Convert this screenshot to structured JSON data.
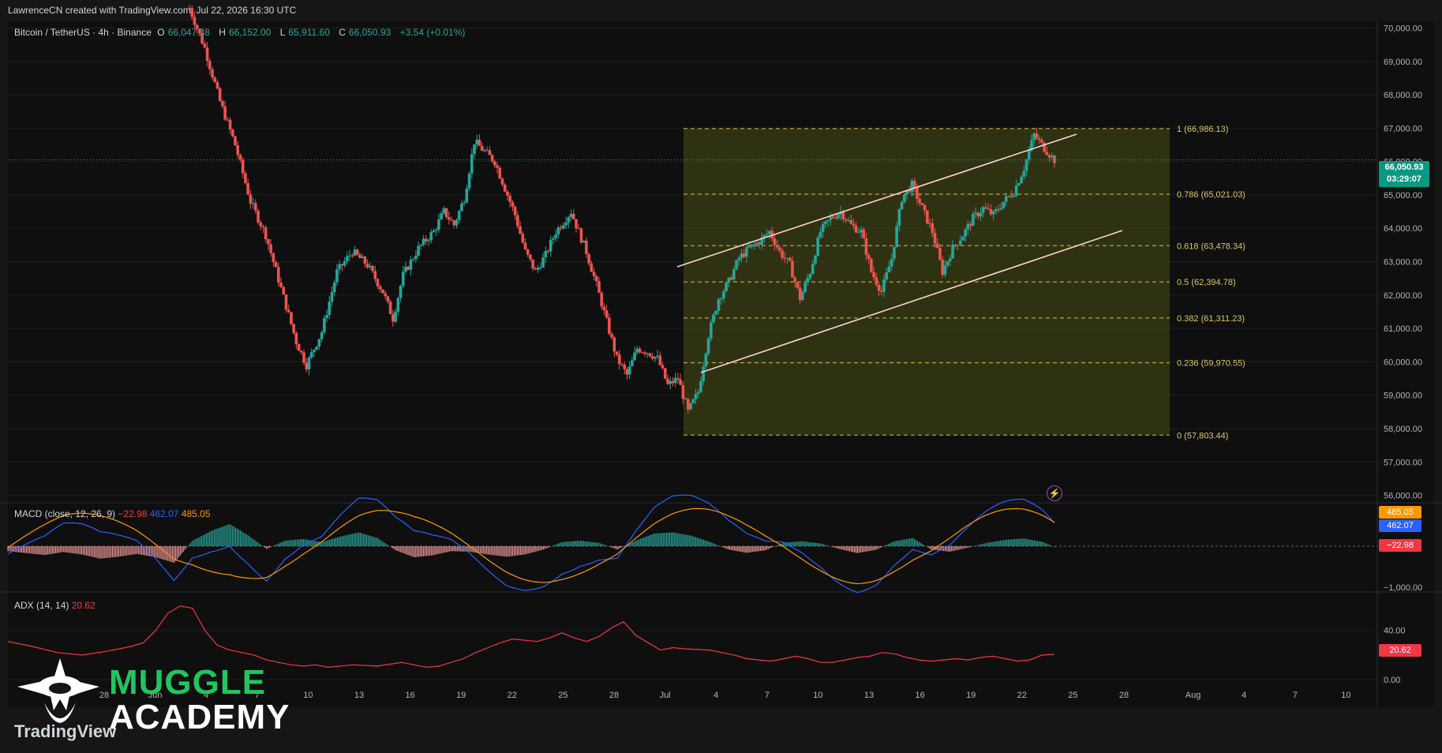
{
  "header": {
    "attribution": "LawrenceCN created with TradingView.com, Jul 22, 2026 16:30 UTC"
  },
  "legend": {
    "symbol": "Bitcoin / TetherUS · 4h · Binance",
    "o_label": "O",
    "o_value": "66,047.38",
    "h_label": "H",
    "h_value": "66,152.00",
    "l_label": "L",
    "l_value": "65,911.60",
    "c_label": "C",
    "c_value": "66,050.93",
    "change": "+3.54 (+0.01%)"
  },
  "price_tag": {
    "price": "66,050.93",
    "countdown": "03:29:07"
  },
  "macd": {
    "label": "MACD (close, 12, 26, 9)",
    "hist": "−22.98",
    "macd": "462.07",
    "signal": "485.05",
    "tag_signal": "485.05",
    "tag_macd": "462.07",
    "tag_hist": "−22.98",
    "axis_label": "−1,000.00"
  },
  "adx": {
    "label": "ADX (14, 14)",
    "value": "20.62",
    "tag": "20.62",
    "axis_labels": [
      "40.00",
      "0.00"
    ]
  },
  "colors": {
    "up": "#26a69a",
    "down": "#ef5350",
    "fib_zone": "#3b3f14",
    "fib_line": "#d4c24a",
    "fib_text": "#d9c86a",
    "channel": "#ffd3d3",
    "macd_line": "#2962ff",
    "signal_line": "#ff9800",
    "adx_line": "#f23645"
  },
  "logo": {
    "line1": "MUGGLE",
    "line2": "ACADEMY",
    "tv": "TradingView"
  },
  "chart_data": {
    "type": "candlestick",
    "title": "",
    "price_axis": [
      "70,000.00",
      "69,000.00",
      "68,000.00",
      "67,000.00",
      "66,000.00",
      "65,000.00",
      "64,000.00",
      "63,000.00",
      "62,000.00",
      "61,000.00",
      "60,000.00",
      "59,000.00",
      "58,000.00",
      "57,000.00",
      "56,000.00"
    ],
    "ylim": [
      55800,
      70200
    ],
    "x_ticks": [
      "28",
      "Jun",
      "4",
      "7",
      "10",
      "13",
      "16",
      "19",
      "22",
      "25",
      "28",
      "Jul",
      "4",
      "7",
      "10",
      "13",
      "16",
      "19",
      "22",
      "25",
      "28",
      "Aug",
      "4",
      "7",
      "10"
    ],
    "fib_levels": [
      {
        "ratio": "1",
        "price": 66986.13,
        "label": "1 (66,986.13)"
      },
      {
        "ratio": "0.786",
        "price": 65021.03,
        "label": "0.786 (65,021.03)"
      },
      {
        "ratio": "0.618",
        "price": 63478.34,
        "label": "0.618 (63,478.34)"
      },
      {
        "ratio": "0.5",
        "price": 62394.78,
        "label": "0.5 (62,394.78)"
      },
      {
        "ratio": "0.382",
        "price": 61311.23,
        "label": "0.382 (61,311.23)"
      },
      {
        "ratio": "0.236",
        "price": 59970.55,
        "label": "0.236 (59,970.55)"
      },
      {
        "ratio": "0",
        "price": 57803.44,
        "label": "0 (57,803.44)"
      }
    ],
    "price_path": [
      [
        0,
        70600
      ],
      [
        3,
        69400
      ],
      [
        6,
        67800
      ],
      [
        9,
        66500
      ],
      [
        12,
        64800
      ],
      [
        15,
        63800
      ],
      [
        18,
        62200
      ],
      [
        21,
        60600
      ],
      [
        23,
        59900
      ],
      [
        26,
        60900
      ],
      [
        29,
        62700
      ],
      [
        32,
        63300
      ],
      [
        35,
        62900
      ],
      [
        38,
        62100
      ],
      [
        40,
        61300
      ],
      [
        42,
        62600
      ],
      [
        45,
        63400
      ],
      [
        48,
        63900
      ],
      [
        50,
        64500
      ],
      [
        52,
        64100
      ],
      [
        54,
        64900
      ],
      [
        56,
        66600
      ],
      [
        58,
        66300
      ],
      [
        60,
        66000
      ],
      [
        62,
        65200
      ],
      [
        64,
        64400
      ],
      [
        66,
        63300
      ],
      [
        68,
        62700
      ],
      [
        70,
        63200
      ],
      [
        72,
        63900
      ],
      [
        74,
        64300
      ],
      [
        75,
        64500
      ],
      [
        76,
        64100
      ],
      [
        78,
        63300
      ],
      [
        80,
        62300
      ],
      [
        82,
        61200
      ],
      [
        84,
        60100
      ],
      [
        86,
        59600
      ],
      [
        88,
        60400
      ],
      [
        90,
        60300
      ],
      [
        92,
        60100
      ],
      [
        94,
        59300
      ],
      [
        96,
        59500
      ],
      [
        98,
        58500
      ],
      [
        100,
        59100
      ],
      [
        102,
        60800
      ],
      [
        104,
        61900
      ],
      [
        106,
        62400
      ],
      [
        108,
        63100
      ],
      [
        110,
        63400
      ],
      [
        112,
        63600
      ],
      [
        114,
        63900
      ],
      [
        116,
        63300
      ],
      [
        118,
        62900
      ],
      [
        120,
        61900
      ],
      [
        122,
        62700
      ],
      [
        124,
        63900
      ],
      [
        126,
        64300
      ],
      [
        128,
        64500
      ],
      [
        130,
        64100
      ],
      [
        132,
        63900
      ],
      [
        134,
        62700
      ],
      [
        136,
        62100
      ],
      [
        138,
        63100
      ],
      [
        140,
        64900
      ],
      [
        142,
        65300
      ],
      [
        144,
        64600
      ],
      [
        146,
        63900
      ],
      [
        148,
        62700
      ],
      [
        150,
        63400
      ],
      [
        152,
        63800
      ],
      [
        154,
        64300
      ],
      [
        156,
        64600
      ],
      [
        158,
        64400
      ],
      [
        160,
        64800
      ],
      [
        162,
        65100
      ],
      [
        164,
        65800
      ],
      [
        166,
        66800
      ],
      [
        168,
        66400
      ],
      [
        170,
        66050
      ]
    ],
    "adx_series": [
      [
        0,
        31
      ],
      [
        4,
        27
      ],
      [
        8,
        22
      ],
      [
        12,
        20
      ],
      [
        16,
        23
      ],
      [
        18,
        25
      ],
      [
        20,
        27
      ],
      [
        22,
        30
      ],
      [
        24,
        40
      ],
      [
        26,
        54
      ],
      [
        28,
        60
      ],
      [
        30,
        58
      ],
      [
        32,
        40
      ],
      [
        34,
        28
      ],
      [
        36,
        24
      ],
      [
        38,
        22
      ],
      [
        40,
        20
      ],
      [
        42,
        16
      ],
      [
        44,
        14
      ],
      [
        46,
        12
      ],
      [
        48,
        11
      ],
      [
        50,
        12
      ],
      [
        52,
        10
      ],
      [
        56,
        12
      ],
      [
        60,
        11
      ],
      [
        64,
        14
      ],
      [
        66,
        12
      ],
      [
        68,
        10
      ],
      [
        70,
        11
      ],
      [
        72,
        14
      ],
      [
        74,
        17
      ],
      [
        76,
        22
      ],
      [
        78,
        26
      ],
      [
        80,
        30
      ],
      [
        82,
        33
      ],
      [
        86,
        31
      ],
      [
        88,
        34
      ],
      [
        90,
        38
      ],
      [
        92,
        34
      ],
      [
        94,
        31
      ],
      [
        96,
        35
      ],
      [
        98,
        42
      ],
      [
        100,
        47
      ],
      [
        102,
        36
      ],
      [
        104,
        30
      ],
      [
        106,
        24
      ],
      [
        108,
        26
      ],
      [
        110,
        25
      ],
      [
        114,
        24
      ],
      [
        118,
        20
      ],
      [
        120,
        17
      ],
      [
        122,
        16
      ],
      [
        124,
        15
      ],
      [
        126,
        17
      ],
      [
        128,
        19
      ],
      [
        130,
        17
      ],
      [
        132,
        14
      ],
      [
        134,
        14
      ],
      [
        136,
        16
      ],
      [
        138,
        18
      ],
      [
        140,
        19
      ],
      [
        142,
        22
      ],
      [
        144,
        21
      ],
      [
        146,
        18
      ],
      [
        148,
        16
      ],
      [
        150,
        15
      ],
      [
        152,
        16
      ],
      [
        154,
        17
      ],
      [
        156,
        16
      ],
      [
        158,
        18
      ],
      [
        160,
        19
      ],
      [
        162,
        17
      ],
      [
        164,
        15
      ],
      [
        166,
        16
      ],
      [
        168,
        20
      ],
      [
        170,
        20.62
      ]
    ],
    "macd_hist": [
      [
        0,
        -180
      ],
      [
        3,
        -250
      ],
      [
        6,
        -320
      ],
      [
        9,
        -210
      ],
      [
        12,
        -300
      ],
      [
        15,
        -450
      ],
      [
        18,
        -380
      ],
      [
        21,
        -280
      ],
      [
        24,
        -400
      ],
      [
        27,
        -600
      ],
      [
        30,
        200
      ],
      [
        33,
        550
      ],
      [
        36,
        800
      ],
      [
        39,
        400
      ],
      [
        42,
        -100
      ],
      [
        45,
        200
      ],
      [
        48,
        260
      ],
      [
        51,
        150
      ],
      [
        54,
        350
      ],
      [
        57,
        500
      ],
      [
        60,
        300
      ],
      [
        63,
        -150
      ],
      [
        66,
        -400
      ],
      [
        69,
        -330
      ],
      [
        72,
        -180
      ],
      [
        75,
        -200
      ],
      [
        78,
        -300
      ],
      [
        81,
        -380
      ],
      [
        84,
        -300
      ],
      [
        87,
        -120
      ],
      [
        90,
        150
      ],
      [
        93,
        200
      ],
      [
        96,
        120
      ],
      [
        99,
        -120
      ],
      [
        102,
        200
      ],
      [
        105,
        460
      ],
      [
        108,
        500
      ],
      [
        111,
        380
      ],
      [
        114,
        160
      ],
      [
        117,
        -120
      ],
      [
        120,
        -240
      ],
      [
        123,
        -150
      ],
      [
        126,
        130
      ],
      [
        129,
        180
      ],
      [
        132,
        100
      ],
      [
        135,
        -100
      ],
      [
        138,
        -250
      ],
      [
        141,
        -130
      ],
      [
        144,
        180
      ],
      [
        147,
        300
      ],
      [
        150,
        -120
      ],
      [
        153,
        -200
      ],
      [
        156,
        -50
      ],
      [
        159,
        120
      ],
      [
        162,
        230
      ],
      [
        165,
        280
      ],
      [
        168,
        160
      ],
      [
        170,
        -22.98
      ]
    ]
  }
}
